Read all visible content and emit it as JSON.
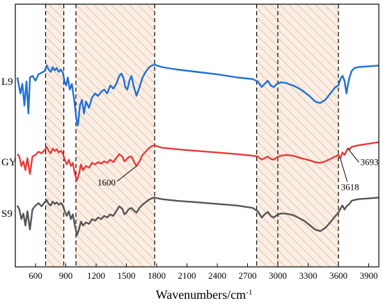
{
  "chart_data": {
    "type": "line",
    "xlabel": "Wavenumbers/cm",
    "xlabel_superscript": "-1",
    "xlim": [
      400,
      4000
    ],
    "xticks": [
      600,
      900,
      1200,
      1500,
      1800,
      2100,
      2400,
      2700,
      3000,
      3300,
      3600,
      3900
    ],
    "shaded_regions": [
      {
        "from": 700,
        "to": 880
      },
      {
        "from": 1000,
        "to": 1780
      },
      {
        "from": 2790,
        "to": 3600
      }
    ],
    "dashed_lines": [
      700,
      880,
      1000,
      1780,
      2790,
      3000,
      3600
    ],
    "series": [
      {
        "name": "L9",
        "color": "#1f6fd6",
        "offset": 0,
        "points": [
          [
            420,
            -10
          ],
          [
            450,
            -30
          ],
          [
            470,
            -18
          ],
          [
            490,
            -45
          ],
          [
            510,
            -15
          ],
          [
            530,
            -55
          ],
          [
            545,
            -10
          ],
          [
            570,
            -8
          ],
          [
            600,
            -14
          ],
          [
            630,
            -6
          ],
          [
            660,
            -4
          ],
          [
            690,
            -2
          ],
          [
            710,
            5
          ],
          [
            730,
            0
          ],
          [
            750,
            -3
          ],
          [
            770,
            3
          ],
          [
            790,
            -1
          ],
          [
            810,
            2
          ],
          [
            830,
            -3
          ],
          [
            850,
            0
          ],
          [
            870,
            -4
          ],
          [
            890,
            -16
          ],
          [
            905,
            -20
          ],
          [
            920,
            -10
          ],
          [
            940,
            -25
          ],
          [
            960,
            -18
          ],
          [
            985,
            -40
          ],
          [
            1005,
            -62
          ],
          [
            1020,
            -70
          ],
          [
            1040,
            -45
          ],
          [
            1060,
            -38
          ],
          [
            1080,
            -55
          ],
          [
            1100,
            -40
          ],
          [
            1130,
            -48
          ],
          [
            1160,
            -35
          ],
          [
            1190,
            -30
          ],
          [
            1220,
            -33
          ],
          [
            1250,
            -28
          ],
          [
            1280,
            -25
          ],
          [
            1310,
            -30
          ],
          [
            1340,
            -20
          ],
          [
            1370,
            -24
          ],
          [
            1400,
            -18
          ],
          [
            1430,
            -8
          ],
          [
            1450,
            -5
          ],
          [
            1470,
            -10
          ],
          [
            1490,
            -22
          ],
          [
            1510,
            -25
          ],
          [
            1530,
            -14
          ],
          [
            1550,
            -8
          ],
          [
            1570,
            -20
          ],
          [
            1600,
            -33
          ],
          [
            1630,
            -22
          ],
          [
            1660,
            -10
          ],
          [
            1690,
            -3
          ],
          [
            1720,
            2
          ],
          [
            1750,
            5
          ],
          [
            1780,
            6
          ],
          [
            1850,
            3
          ],
          [
            2000,
            0
          ],
          [
            2200,
            -3
          ],
          [
            2400,
            -6
          ],
          [
            2600,
            -10
          ],
          [
            2750,
            -12
          ],
          [
            2800,
            -15
          ],
          [
            2840,
            -22
          ],
          [
            2870,
            -18
          ],
          [
            2900,
            -14
          ],
          [
            2930,
            -20
          ],
          [
            2960,
            -22
          ],
          [
            2990,
            -18
          ],
          [
            3030,
            -16
          ],
          [
            3080,
            -17
          ],
          [
            3150,
            -20
          ],
          [
            3200,
            -23
          ],
          [
            3260,
            -28
          ],
          [
            3320,
            -34
          ],
          [
            3370,
            -40
          ],
          [
            3420,
            -42
          ],
          [
            3470,
            -38
          ],
          [
            3520,
            -30
          ],
          [
            3570,
            -22
          ],
          [
            3600,
            -20
          ],
          [
            3620,
            -12
          ],
          [
            3640,
            -8
          ],
          [
            3660,
            -14
          ],
          [
            3680,
            -30
          ],
          [
            3695,
            -18
          ],
          [
            3710,
            -10
          ],
          [
            3730,
            -2
          ],
          [
            3760,
            2
          ],
          [
            3800,
            3
          ],
          [
            3900,
            4
          ],
          [
            4000,
            5
          ]
        ]
      },
      {
        "name": "GY",
        "color": "#e83a3a",
        "offset": 0,
        "points": [
          [
            420,
            -5
          ],
          [
            440,
            -8
          ],
          [
            460,
            -20
          ],
          [
            480,
            -14
          ],
          [
            500,
            -25
          ],
          [
            520,
            -10
          ],
          [
            545,
            -30
          ],
          [
            570,
            -8
          ],
          [
            600,
            -6
          ],
          [
            630,
            -2
          ],
          [
            660,
            -4
          ],
          [
            690,
            0
          ],
          [
            710,
            4
          ],
          [
            730,
            -1
          ],
          [
            750,
            -4
          ],
          [
            770,
            2
          ],
          [
            790,
            -1
          ],
          [
            810,
            1
          ],
          [
            830,
            -3
          ],
          [
            850,
            -1
          ],
          [
            870,
            -4
          ],
          [
            890,
            -12
          ],
          [
            910,
            -18
          ],
          [
            930,
            -12
          ],
          [
            950,
            -20
          ],
          [
            970,
            -16
          ],
          [
            990,
            -30
          ],
          [
            1010,
            -38
          ],
          [
            1030,
            -30
          ],
          [
            1050,
            -18
          ],
          [
            1070,
            -25
          ],
          [
            1100,
            -20
          ],
          [
            1130,
            -22
          ],
          [
            1160,
            -16
          ],
          [
            1190,
            -18
          ],
          [
            1220,
            -15
          ],
          [
            1250,
            -17
          ],
          [
            1280,
            -14
          ],
          [
            1310,
            -16
          ],
          [
            1340,
            -12
          ],
          [
            1370,
            -15
          ],
          [
            1400,
            -10
          ],
          [
            1430,
            -5
          ],
          [
            1460,
            -8
          ],
          [
            1480,
            -14
          ],
          [
            1500,
            -12
          ],
          [
            1520,
            -9
          ],
          [
            1550,
            -8
          ],
          [
            1580,
            -16
          ],
          [
            1600,
            -20
          ],
          [
            1630,
            -14
          ],
          [
            1660,
            -6
          ],
          [
            1690,
            -2
          ],
          [
            1720,
            2
          ],
          [
            1750,
            5
          ],
          [
            1780,
            6
          ],
          [
            1850,
            3
          ],
          [
            2000,
            1
          ],
          [
            2200,
            -1
          ],
          [
            2400,
            -3
          ],
          [
            2600,
            -5
          ],
          [
            2750,
            -7
          ],
          [
            2800,
            -8
          ],
          [
            2840,
            -12
          ],
          [
            2870,
            -10
          ],
          [
            2900,
            -8
          ],
          [
            2930,
            -11
          ],
          [
            2960,
            -12
          ],
          [
            2990,
            -9
          ],
          [
            3030,
            -7
          ],
          [
            3080,
            -6
          ],
          [
            3150,
            -7
          ],
          [
            3200,
            -9
          ],
          [
            3260,
            -11
          ],
          [
            3320,
            -13
          ],
          [
            3370,
            -15
          ],
          [
            3420,
            -16
          ],
          [
            3470,
            -14
          ],
          [
            3520,
            -11
          ],
          [
            3570,
            -8
          ],
          [
            3600,
            -6
          ],
          [
            3618,
            -10
          ],
          [
            3640,
            -3
          ],
          [
            3660,
            -6
          ],
          [
            3680,
            -1
          ],
          [
            3693,
            2
          ],
          [
            3710,
            1
          ],
          [
            3730,
            4
          ],
          [
            3760,
            5
          ],
          [
            3800,
            6
          ],
          [
            3900,
            8
          ],
          [
            4000,
            10
          ]
        ]
      },
      {
        "name": "S9",
        "color": "#555555",
        "offset": 0,
        "points": [
          [
            420,
            -5
          ],
          [
            440,
            -10
          ],
          [
            460,
            -22
          ],
          [
            480,
            -15
          ],
          [
            500,
            -30
          ],
          [
            520,
            -12
          ],
          [
            545,
            -35
          ],
          [
            570,
            -10
          ],
          [
            600,
            -5
          ],
          [
            630,
            -2
          ],
          [
            660,
            -6
          ],
          [
            690,
            -1
          ],
          [
            710,
            2
          ],
          [
            730,
            -3
          ],
          [
            750,
            -5
          ],
          [
            770,
            0
          ],
          [
            790,
            -3
          ],
          [
            810,
            -1
          ],
          [
            830,
            -4
          ],
          [
            850,
            -2
          ],
          [
            870,
            -5
          ],
          [
            890,
            -12
          ],
          [
            910,
            -18
          ],
          [
            930,
            -12
          ],
          [
            950,
            -22
          ],
          [
            970,
            -16
          ],
          [
            990,
            -30
          ],
          [
            1010,
            -42
          ],
          [
            1030,
            -35
          ],
          [
            1050,
            -25
          ],
          [
            1070,
            -30
          ],
          [
            1100,
            -26
          ],
          [
            1130,
            -28
          ],
          [
            1160,
            -22
          ],
          [
            1190,
            -24
          ],
          [
            1220,
            -20
          ],
          [
            1250,
            -22
          ],
          [
            1280,
            -18
          ],
          [
            1310,
            -20
          ],
          [
            1340,
            -16
          ],
          [
            1370,
            -18
          ],
          [
            1400,
            -12
          ],
          [
            1430,
            -6
          ],
          [
            1460,
            -9
          ],
          [
            1480,
            -16
          ],
          [
            1500,
            -14
          ],
          [
            1520,
            -10
          ],
          [
            1550,
            -8
          ],
          [
            1580,
            -12
          ],
          [
            1600,
            -14
          ],
          [
            1630,
            -8
          ],
          [
            1660,
            -4
          ],
          [
            1690,
            -1
          ],
          [
            1720,
            2
          ],
          [
            1750,
            4
          ],
          [
            1780,
            5
          ],
          [
            1850,
            3
          ],
          [
            2000,
            1
          ],
          [
            2200,
            -1
          ],
          [
            2400,
            -3
          ],
          [
            2600,
            -5
          ],
          [
            2750,
            -8
          ],
          [
            2800,
            -12
          ],
          [
            2840,
            -20
          ],
          [
            2870,
            -16
          ],
          [
            2900,
            -13
          ],
          [
            2930,
            -18
          ],
          [
            2960,
            -20
          ],
          [
            2990,
            -17
          ],
          [
            3030,
            -15
          ],
          [
            3080,
            -15
          ],
          [
            3150,
            -17
          ],
          [
            3200,
            -20
          ],
          [
            3260,
            -24
          ],
          [
            3320,
            -30
          ],
          [
            3370,
            -35
          ],
          [
            3420,
            -37
          ],
          [
            3470,
            -33
          ],
          [
            3520,
            -26
          ],
          [
            3570,
            -18
          ],
          [
            3600,
            -14
          ],
          [
            3620,
            -9
          ],
          [
            3640,
            -5
          ],
          [
            3660,
            -10
          ],
          [
            3680,
            -6
          ],
          [
            3710,
            -3
          ],
          [
            3730,
            1
          ],
          [
            3760,
            2
          ],
          [
            3800,
            3
          ],
          [
            3900,
            4
          ],
          [
            4000,
            5
          ]
        ]
      }
    ],
    "annotations": [
      {
        "text": "1600",
        "x": 1600,
        "series": "GY"
      },
      {
        "text": "3618",
        "x": 3618,
        "series": "GY"
      },
      {
        "text": "3693",
        "x": 3693,
        "series": "GY"
      }
    ]
  }
}
